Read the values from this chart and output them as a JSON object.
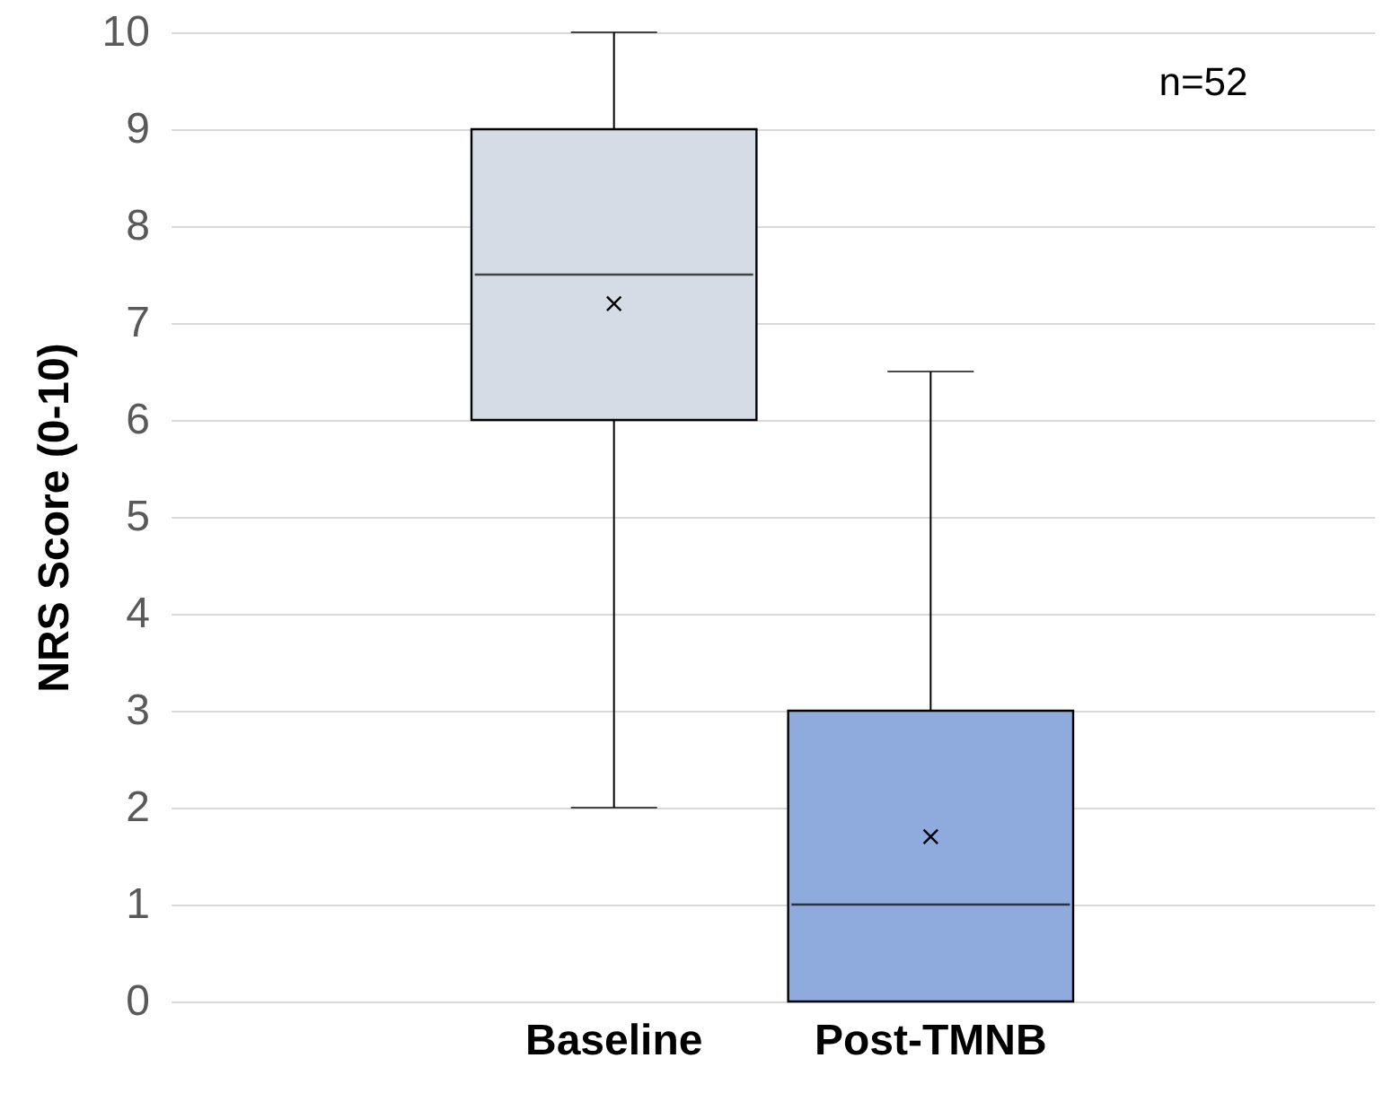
{
  "chart_data": {
    "type": "box",
    "ylabel": "NRS Score (0-10)",
    "categories": [
      "Baseline",
      "Post-TMNB"
    ],
    "colors": [
      "#d6dce5",
      "#8faadc"
    ],
    "boxes": [
      {
        "low": 2,
        "q1": 6,
        "median": 7.5,
        "q3": 9,
        "high": 10,
        "mean": 7.2
      },
      {
        "low": 0,
        "q1": 0,
        "median": 1,
        "q3": 3,
        "high": 6.5,
        "mean": 1.7
      }
    ],
    "ylim": [
      0,
      10
    ],
    "yticks": [
      0,
      1,
      2,
      3,
      4,
      5,
      6,
      7,
      8,
      9,
      10
    ],
    "grid": "y",
    "annotations": [
      "n=52"
    ]
  }
}
